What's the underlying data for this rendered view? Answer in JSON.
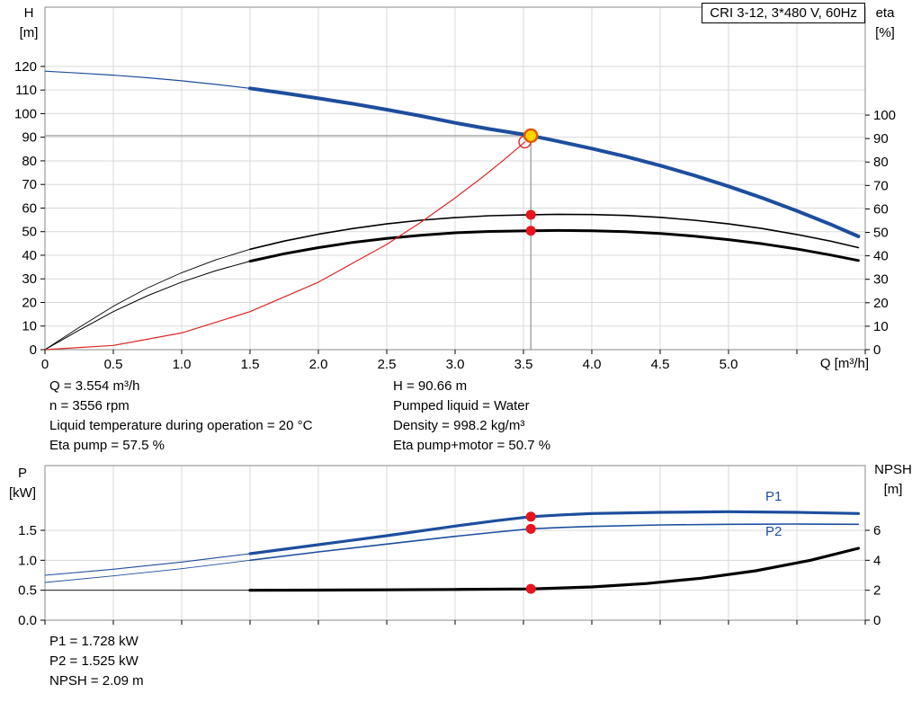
{
  "chart_data": [
    {
      "type": "line",
      "title": "CRI 3-12, 3*480 V, 60Hz",
      "x_axis": {
        "label": "Q [m³/h]",
        "min": 0,
        "max": 6,
        "tick_step": 0.5,
        "tick_labels": [
          "0",
          "0.5",
          "1.0",
          "1.5",
          "2.0",
          "2.5",
          "3.0",
          "3.5",
          "4.0",
          "4.5",
          "5.0"
        ]
      },
      "y_left": {
        "name": "H",
        "unit": "[m]",
        "ticks": [
          "0",
          "10",
          "20",
          "30",
          "40",
          "50",
          "60",
          "70",
          "80",
          "90",
          "100",
          "110",
          "120"
        ]
      },
      "y_right": {
        "name": "eta",
        "unit": "[%]",
        "ticks": [
          "0",
          "10",
          "20",
          "30",
          "40",
          "50",
          "60",
          "70",
          "80",
          "90",
          "100"
        ]
      },
      "crosshair": {
        "q": 3.554,
        "value": 90.66,
        "axis": "left"
      },
      "series": [
        {
          "name": "head",
          "axis": "left",
          "color": "#1d4e9e",
          "width": 4,
          "thin_until": 1.5,
          "thin_width": 1.2,
          "points": [
            [
              0,
              118
            ],
            [
              0.25,
              117.2
            ],
            [
              0.5,
              116.3
            ],
            [
              0.75,
              115.2
            ],
            [
              1,
              113.9
            ],
            [
              1.25,
              112.4
            ],
            [
              1.5,
              110.7
            ],
            [
              1.75,
              108.7
            ],
            [
              2,
              106.5
            ],
            [
              2.25,
              104.2
            ],
            [
              2.5,
              101.7
            ],
            [
              2.75,
              99
            ],
            [
              3,
              96.1
            ],
            [
              3.25,
              93.5
            ],
            [
              3.554,
              90.66
            ],
            [
              3.75,
              88.3
            ],
            [
              4,
              85.2
            ],
            [
              4.25,
              81.8
            ],
            [
              4.5,
              78
            ],
            [
              4.75,
              73.8
            ],
            [
              5,
              69.2
            ],
            [
              5.25,
              64.2
            ],
            [
              5.5,
              58.8
            ],
            [
              5.75,
              53
            ],
            [
              5.95,
              48
            ]
          ]
        },
        {
          "name": "eta-pump",
          "axis": "right",
          "color": "#000000",
          "width": 1.6,
          "thin_until": 1.5,
          "thin_width": 0.9,
          "points": [
            [
              0,
              0
            ],
            [
              0.25,
              9.5
            ],
            [
              0.5,
              18.5
            ],
            [
              0.75,
              26.3
            ],
            [
              1,
              32.8
            ],
            [
              1.25,
              38.3
            ],
            [
              1.5,
              42.8
            ],
            [
              1.75,
              46.3
            ],
            [
              2,
              49.2
            ],
            [
              2.25,
              51.6
            ],
            [
              2.5,
              53.6
            ],
            [
              2.75,
              55.2
            ],
            [
              3,
              56.3
            ],
            [
              3.25,
              57.1
            ],
            [
              3.554,
              57.5
            ],
            [
              3.75,
              57.7
            ],
            [
              4,
              57.6
            ],
            [
              4.25,
              57.2
            ],
            [
              4.5,
              56.4
            ],
            [
              4.75,
              55.2
            ],
            [
              5,
              53.6
            ],
            [
              5.25,
              51.6
            ],
            [
              5.5,
              49.1
            ],
            [
              5.75,
              46.2
            ],
            [
              5.95,
              43.5
            ]
          ]
        },
        {
          "name": "eta-pump-motor",
          "axis": "right",
          "color": "#000000",
          "width": 3,
          "thin_until": 1.5,
          "thin_width": 1,
          "points": [
            [
              0,
              0
            ],
            [
              0.25,
              8.3
            ],
            [
              0.5,
              16.2
            ],
            [
              0.75,
              23
            ],
            [
              1,
              28.8
            ],
            [
              1.25,
              33.7
            ],
            [
              1.5,
              37.7
            ],
            [
              1.75,
              40.9
            ],
            [
              2,
              43.5
            ],
            [
              2.25,
              45.7
            ],
            [
              2.5,
              47.4
            ],
            [
              2.75,
              48.8
            ],
            [
              3,
              49.8
            ],
            [
              3.25,
              50.4
            ],
            [
              3.554,
              50.7
            ],
            [
              3.75,
              50.8
            ],
            [
              4,
              50.7
            ],
            [
              4.25,
              50.3
            ],
            [
              4.5,
              49.5
            ],
            [
              4.75,
              48.4
            ],
            [
              5,
              46.9
            ],
            [
              5.25,
              45.1
            ],
            [
              5.5,
              42.9
            ],
            [
              5.75,
              40.3
            ],
            [
              5.95,
              38
            ]
          ]
        },
        {
          "name": "system-curve",
          "axis": "left",
          "color": "#e02424",
          "width": 1.2,
          "points": [
            [
              0,
              0
            ],
            [
              0.5,
              1.8
            ],
            [
              1,
              7.1
            ],
            [
              1.5,
              16.1
            ],
            [
              2,
              28.6
            ],
            [
              2.5,
              44.6
            ],
            [
              2.75,
              54
            ],
            [
              3,
              64.3
            ],
            [
              3.2,
              73.1
            ],
            [
              3.35,
              80.1
            ],
            [
              3.45,
              85
            ],
            [
              3.51,
              88
            ]
          ]
        }
      ],
      "markers": [
        {
          "kind": "open-circle",
          "q": 3.51,
          "value": 88,
          "axis": "left",
          "color": "#e02424"
        },
        {
          "kind": "dot",
          "q": 3.554,
          "value": 57.5,
          "axis": "right",
          "color": "#e8141e"
        },
        {
          "kind": "dot",
          "q": 3.554,
          "value": 50.7,
          "axis": "right",
          "color": "#e8141e"
        },
        {
          "kind": "point",
          "q": 3.554,
          "value": 90.66,
          "axis": "left",
          "fill": "#ffd400",
          "stroke": "#e05a00"
        }
      ]
    },
    {
      "type": "line",
      "x_axis": {
        "label": "",
        "min": 0,
        "max": 6,
        "tick_step": 0.5,
        "tick_labels": []
      },
      "y_left": {
        "name": "P",
        "unit": "[kW]",
        "ticks": [
          "0.0",
          "0.5",
          "1.0",
          "1.5"
        ]
      },
      "y_right": {
        "name": "NPSH",
        "unit": "[m]",
        "ticks": [
          "0",
          "2",
          "4",
          "6"
        ]
      },
      "series": [
        {
          "name": "P1",
          "label": "P1",
          "axis": "left",
          "color": "#1d4e9e",
          "width": 3.2,
          "thin_until": 1.5,
          "thin_width": 1.1,
          "points": [
            [
              0,
              0.75
            ],
            [
              0.5,
              0.85
            ],
            [
              1,
              0.97
            ],
            [
              1.5,
              1.11
            ],
            [
              2,
              1.26
            ],
            [
              2.5,
              1.41
            ],
            [
              3,
              1.57
            ],
            [
              3.3,
              1.66
            ],
            [
              3.554,
              1.728
            ],
            [
              3.8,
              1.76
            ],
            [
              4,
              1.78
            ],
            [
              4.5,
              1.8
            ],
            [
              5,
              1.81
            ],
            [
              5.5,
              1.8
            ],
            [
              5.95,
              1.78
            ]
          ]
        },
        {
          "name": "P2",
          "label": "P2",
          "axis": "left",
          "color": "#1d4e9e",
          "width": 1.6,
          "thin_until": 1.5,
          "thin_width": 0.9,
          "points": [
            [
              0,
              0.63
            ],
            [
              0.5,
              0.74
            ],
            [
              1,
              0.86
            ],
            [
              1.5,
              1
            ],
            [
              2,
              1.14
            ],
            [
              2.5,
              1.27
            ],
            [
              3,
              1.4
            ],
            [
              3.3,
              1.47
            ],
            [
              3.554,
              1.525
            ],
            [
              3.8,
              1.55
            ],
            [
              4,
              1.565
            ],
            [
              4.5,
              1.59
            ],
            [
              5,
              1.6
            ],
            [
              5.5,
              1.605
            ],
            [
              5.95,
              1.6
            ]
          ]
        },
        {
          "name": "NPSH",
          "label": "",
          "axis": "right",
          "color": "#000000",
          "width": 3.2,
          "thin_until": 1.5,
          "thin_width": 0.9,
          "points": [
            [
              0,
              2
            ],
            [
              0.5,
              2
            ],
            [
              1,
              2
            ],
            [
              1.5,
              2
            ],
            [
              2,
              2.01
            ],
            [
              2.5,
              2.03
            ],
            [
              3,
              2.05
            ],
            [
              3.554,
              2.09
            ],
            [
              4,
              2.22
            ],
            [
              4.4,
              2.45
            ],
            [
              4.8,
              2.8
            ],
            [
              5.2,
              3.3
            ],
            [
              5.6,
              4
            ],
            [
              5.95,
              4.8
            ]
          ]
        }
      ],
      "markers": [
        {
          "kind": "dot",
          "q": 3.554,
          "value": 1.728,
          "axis": "left",
          "color": "#e8141e"
        },
        {
          "kind": "dot",
          "q": 3.554,
          "value": 1.525,
          "axis": "left",
          "color": "#e8141e"
        },
        {
          "kind": "dot",
          "q": 3.554,
          "value": 2.09,
          "axis": "right",
          "color": "#e8141e"
        }
      ]
    }
  ],
  "annotations": {
    "left": [
      "Q = 3.554 m³/h",
      "n = 3556 rpm",
      "Liquid temperature during operation = 20 °C",
      "Eta pump = 57.5 %"
    ],
    "right": [
      "H = 90.66 m",
      "Pumped liquid = Water",
      "Density = 998.2 kg/m³",
      "Eta pump+motor = 50.7 %"
    ],
    "bottom": [
      "P1 = 1.728 kW",
      "P2 = 1.525 kW",
      "NPSH = 2.09 m"
    ]
  }
}
